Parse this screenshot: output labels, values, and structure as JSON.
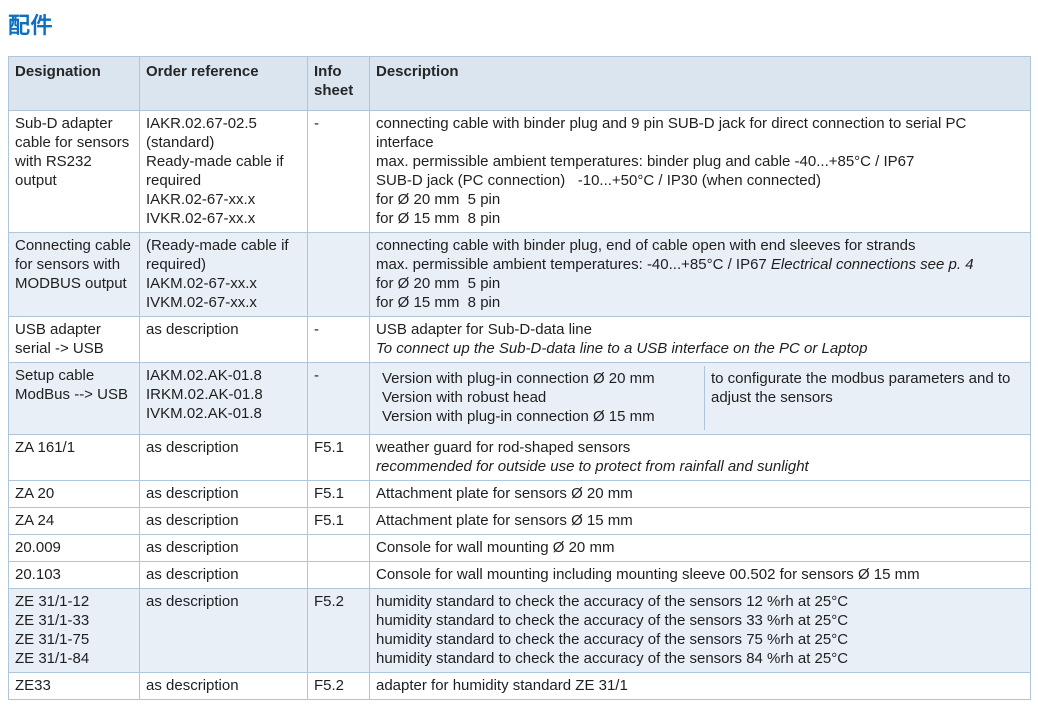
{
  "page_title": "配件",
  "accent_color": "#0d6fc0",
  "table": {
    "headers": [
      "Designation",
      "Order reference",
      "Info sheet",
      "Description"
    ],
    "rows": [
      {
        "tinted": false,
        "designation": [
          "Sub-D adapter",
          "cable for sensors",
          "with RS232",
          "output"
        ],
        "order_reference": [
          "IAKR.02.67-02.5",
          "(standard)",
          "Ready-made cable if",
          "required",
          "IAKR.02-67-xx.x",
          "IVKR.02-67-xx.x"
        ],
        "info_sheet": "-",
        "description": {
          "lines": [
            [
              {
                "text": "connecting cable with binder plug and 9 pin SUB-D jack for direct connection to serial PC interface",
                "italic": false
              }
            ],
            [
              {
                "text": "max. permissible ambient temperatures: binder plug and cable -40...+85°C / IP67",
                "italic": false
              }
            ],
            [
              {
                "text": "SUB-D jack (PC connection)   -10...+50°C / IP30 (when connected)",
                "italic": false
              }
            ],
            [
              {
                "text": "for Ø 20 mm  5 pin",
                "italic": false
              }
            ],
            [
              {
                "text": "for Ø 15 mm  8 pin",
                "italic": false
              }
            ]
          ]
        }
      },
      {
        "tinted": true,
        "designation": [
          "Connecting cable",
          "for sensors with",
          "MODBUS output"
        ],
        "order_reference": [
          "(Ready-made cable if",
          "required)",
          "IAKM.02-67-xx.x",
          "IVKM.02-67-xx.x"
        ],
        "info_sheet": "",
        "description": {
          "lines": [
            [
              {
                "text": "connecting cable with binder plug, end of cable open with end sleeves for strands",
                "italic": false
              }
            ],
            [
              {
                "text": "max. permissible ambient temperatures: -40...+85°C / IP67 ",
                "italic": false
              },
              {
                "text": "Electrical connections see p. 4",
                "italic": true
              }
            ],
            [
              {
                "text": "for Ø 20 mm  5 pin",
                "italic": false
              }
            ],
            [
              {
                "text": "for Ø 15 mm  8 pin",
                "italic": false
              }
            ]
          ]
        }
      },
      {
        "tinted": false,
        "designation": [
          "USB adapter",
          "serial -> USB"
        ],
        "order_reference": [
          "as description"
        ],
        "info_sheet": "-",
        "description": {
          "lines": [
            [
              {
                "text": "USB adapter for Sub-D-data line",
                "italic": false
              }
            ],
            [
              {
                "text": "To connect up the Sub-D-data line to a USB interface on the PC or Laptop",
                "italic": true
              }
            ]
          ]
        }
      },
      {
        "tinted": true,
        "designation": [
          "Setup cable",
          "ModBus --> USB"
        ],
        "order_reference": [
          "IAKM.02.AK-01.8",
          "IRKM.02.AK-01.8",
          "IVKM.02.AK-01.8"
        ],
        "info_sheet": "-",
        "description": {
          "split": true,
          "left": [
            [
              {
                "text": "Version with plug-in connection Ø 20 mm",
                "italic": false
              }
            ],
            [
              {
                "text": "Version with robust head",
                "italic": false
              }
            ],
            [
              {
                "text": "Version with plug-in connection Ø 15 mm",
                "italic": false
              }
            ]
          ],
          "right": [
            [
              {
                "text": "to configurate the modbus parameters and to adjust the sensors",
                "italic": false
              }
            ]
          ]
        }
      },
      {
        "tinted": false,
        "designation": [
          "ZA 161/1"
        ],
        "order_reference": [
          "as description"
        ],
        "info_sheet": "F5.1",
        "description": {
          "lines": [
            [
              {
                "text": "weather guard for rod-shaped sensors",
                "italic": false
              }
            ],
            [
              {
                "text": "recommended for outside use to protect from rainfall and sunlight",
                "italic": true
              }
            ]
          ]
        }
      },
      {
        "tinted": false,
        "designation": [
          "ZA 20"
        ],
        "order_reference": [
          "as description"
        ],
        "info_sheet": "F5.1",
        "description": {
          "lines": [
            [
              {
                "text": "Attachment plate for sensors Ø 20 mm",
                "italic": false
              }
            ]
          ]
        }
      },
      {
        "tinted": false,
        "designation": [
          "ZA 24"
        ],
        "order_reference": [
          "as description"
        ],
        "info_sheet": "F5.1",
        "description": {
          "lines": [
            [
              {
                "text": "Attachment plate for sensors Ø 15 mm",
                "italic": false
              }
            ]
          ]
        }
      },
      {
        "tinted": false,
        "designation": [
          "20.009"
        ],
        "order_reference": [
          "as description"
        ],
        "info_sheet": "",
        "description": {
          "lines": [
            [
              {
                "text": "Console for wall mounting Ø 20 mm",
                "italic": false
              }
            ]
          ]
        }
      },
      {
        "tinted": false,
        "designation": [
          "20.103"
        ],
        "order_reference": [
          "as description"
        ],
        "info_sheet": "",
        "description": {
          "lines": [
            [
              {
                "text": "Console for wall mounting including mounting sleeve 00.502 for sensors Ø 15 mm",
                "italic": false
              }
            ]
          ]
        }
      },
      {
        "tinted": true,
        "designation": [
          "ZE 31/1-12",
          "ZE 31/1-33",
          "ZE 31/1-75",
          "ZE 31/1-84"
        ],
        "order_reference": [
          "as description"
        ],
        "info_sheet": "F5.2",
        "description": {
          "lines": [
            [
              {
                "text": "humidity standard to check the accuracy of the sensors 12 %rh at 25°C",
                "italic": false
              }
            ],
            [
              {
                "text": "humidity standard to check the accuracy of the sensors 33 %rh at 25°C",
                "italic": false
              }
            ],
            [
              {
                "text": "humidity standard to check the accuracy of the sensors 75 %rh at 25°C",
                "italic": false
              }
            ],
            [
              {
                "text": "humidity standard to check the accuracy of the sensors 84 %rh at 25°C",
                "italic": false
              }
            ]
          ]
        }
      },
      {
        "tinted": false,
        "designation": [
          "ZE33"
        ],
        "order_reference": [
          "as description"
        ],
        "info_sheet": "F5.2",
        "description": {
          "lines": [
            [
              {
                "text": "adapter for humidity standard ZE 31/1",
                "italic": false
              }
            ]
          ]
        }
      }
    ]
  }
}
